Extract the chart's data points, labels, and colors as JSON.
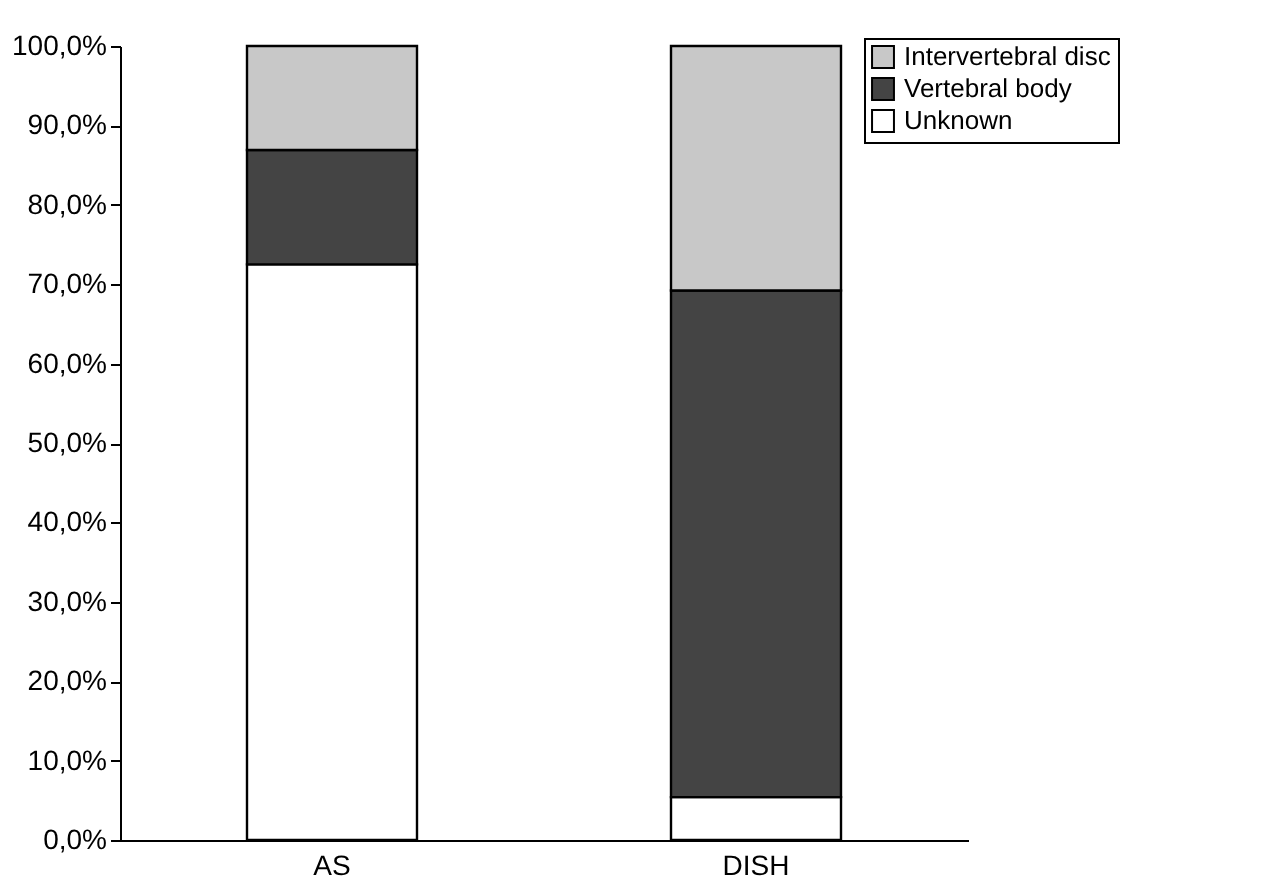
{
  "chart_data": {
    "type": "bar",
    "stacked": true,
    "categories": [
      "AS",
      "DISH"
    ],
    "series": [
      {
        "name": "Unknown",
        "color": "#ffffff",
        "values": [
          72.5,
          5.4
        ]
      },
      {
        "name": "Vertebral body",
        "color": "#444444",
        "values": [
          14.4,
          63.8
        ]
      },
      {
        "name": "Intervertebral disc",
        "color": "#c8c8c8",
        "values": [
          13.1,
          30.8
        ]
      }
    ],
    "ylim": [
      0,
      100
    ],
    "yticks": [
      {
        "value": 0,
        "label": "0,0%"
      },
      {
        "value": 10,
        "label": "10,0%"
      },
      {
        "value": 20,
        "label": "20,0%"
      },
      {
        "value": 30,
        "label": "30,0%"
      },
      {
        "value": 40,
        "label": "40,0%"
      },
      {
        "value": 50,
        "label": "50,0%"
      },
      {
        "value": 60,
        "label": "60,0%"
      },
      {
        "value": 70,
        "label": "70,0%"
      },
      {
        "value": 80,
        "label": "80,0%"
      },
      {
        "value": 90,
        "label": "90,0%"
      },
      {
        "value": 100,
        "label": "100,0%"
      }
    ],
    "grid": false,
    "legend": "top right"
  }
}
